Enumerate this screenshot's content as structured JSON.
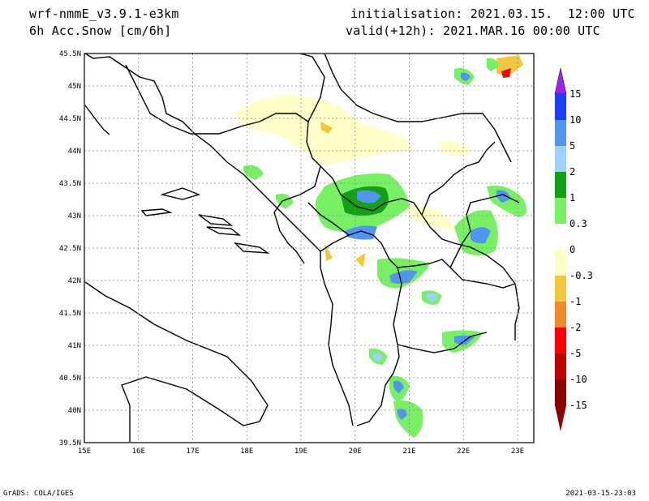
{
  "header": {
    "model": "wrf-nmmE_v3.9.1-e3km",
    "field": "6h Acc.Snow [cm/6h]",
    "init": "initialisation: 2021.03.15.  12:00 UTC",
    "valid": "valid(+12h): 2021.MAR.16 00:00 UTC"
  },
  "footer": {
    "left": "GrADS: COLA/IGES",
    "right": "2021-03-15-23:03"
  },
  "map": {
    "lat_labels": [
      "45.5N",
      "45N",
      "44.5N",
      "44N",
      "43.5N",
      "43N",
      "42.5N",
      "42N",
      "41.5N",
      "41N",
      "40.5N",
      "40N",
      "39.5N"
    ],
    "lon_labels": [
      "15E",
      "16E",
      "17E",
      "18E",
      "19E",
      "20E",
      "21E",
      "22E",
      "23E"
    ],
    "lat_range": [
      39.5,
      45.5
    ],
    "lon_range": [
      15,
      23.3
    ],
    "grid": "dotted"
  },
  "colorbar": {
    "levels": [
      "15",
      "10",
      "5",
      "2",
      "1",
      "0.3",
      "0",
      "-0.3",
      "-1",
      "-2",
      "-5",
      "-10",
      "-15"
    ],
    "colors": [
      "#a020f0",
      "#1e3cff",
      "#5096f0",
      "#a0d2ff",
      "#14a014",
      "#78f064",
      "#ffffff",
      "#ffffc8",
      "#f0c83c",
      "#f08c28",
      "#fa0000",
      "#c00000",
      "#8c0000"
    ]
  }
}
